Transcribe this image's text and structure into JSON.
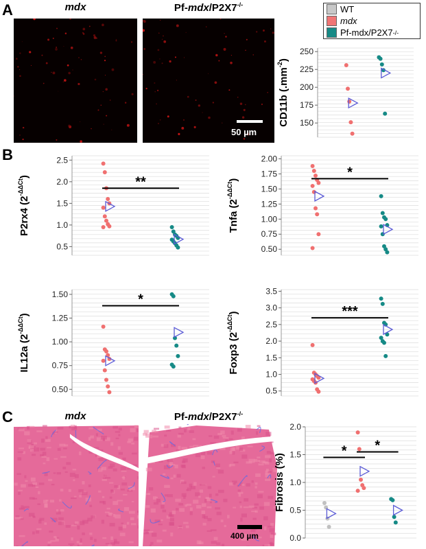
{
  "panels": {
    "A": "A",
    "B": "B",
    "C": "C"
  },
  "panelA": {
    "title_left_italic": "mdx",
    "title_right_prefix": "Pf-",
    "title_right_italic": "mdx",
    "title_right_suffix": "/P2X7",
    "title_right_sup": "-/-",
    "scalebar_label": "50 µm"
  },
  "panelC": {
    "title_left_italic": "mdx",
    "title_right_prefix": "Pf-",
    "title_right_italic": "mdx",
    "title_right_suffix": "/P2X7",
    "title_right_sup": "-/-",
    "scalebar_label": "400 µm"
  },
  "legend": {
    "items": [
      {
        "label": "WT",
        "italic": false,
        "sup": "",
        "color": "#c8c8c8"
      },
      {
        "label": "mdx",
        "italic": true,
        "sup": "",
        "color": "#f07575"
      },
      {
        "label": "Pf-mdx/P2X7",
        "italic": false,
        "sup": "-/-",
        "color": "#178a86"
      }
    ]
  },
  "colors": {
    "wt": "#c0c0c0",
    "mdx": "#f07070",
    "pf": "#168a86",
    "mean_marker": "#5a5ad6"
  },
  "chart_data": [
    {
      "id": "cd11b",
      "type": "scatter",
      "ylabel": "CD11b (.mm",
      "ylabel_sup": "-2",
      "ylabel_tail": ")",
      "ylim": [
        130,
        255
      ],
      "yticks": [
        150,
        175,
        200,
        225,
        250
      ],
      "ytick_labels": [
        "150",
        "175",
        "200",
        "225",
        "250"
      ],
      "groups": [
        {
          "group": "mdx",
          "values": [
            231,
            198,
            180,
            151,
            135
          ],
          "mean": 178
        },
        {
          "group": "pf",
          "values": [
            242,
            240,
            232,
            224,
            163
          ],
          "mean": 220
        }
      ],
      "significance": []
    },
    {
      "id": "p2rx4",
      "type": "scatter",
      "ylabel": "P2rx4 (2",
      "ylabel_sup": "-ΔΔCt",
      "ylabel_tail": ")",
      "ylim": [
        0.3,
        2.6
      ],
      "yticks": [
        0.5,
        1.0,
        1.5,
        2.0,
        2.5
      ],
      "ytick_labels": [
        "0.5",
        "1.0",
        "1.5",
        "2.0",
        "2.5"
      ],
      "groups": [
        {
          "group": "mdx",
          "values": [
            2.42,
            2.22,
            1.85,
            1.6,
            1.5,
            1.4,
            1.2,
            1.1,
            1.02,
            0.97,
            0.95
          ],
          "mean": 1.43
        },
        {
          "group": "pf",
          "values": [
            0.95,
            0.85,
            0.78,
            0.75,
            0.7,
            0.66,
            0.62,
            0.58,
            0.53,
            0.48
          ],
          "mean": 0.67
        }
      ],
      "significance": [
        {
          "label": "**",
          "y": 1.85
        }
      ]
    },
    {
      "id": "tnfa",
      "type": "scatter",
      "ylabel": "Tnfa (2",
      "ylabel_sup": "-ΔΔCt",
      "ylabel_tail": ")",
      "ylim": [
        0.4,
        2.05
      ],
      "yticks": [
        0.5,
        0.75,
        1.0,
        1.25,
        1.5,
        1.75,
        2.0
      ],
      "ytick_labels": [
        "0.50",
        "0.75",
        "1.00",
        "1.25",
        "1.50",
        "1.75",
        "2.00"
      ],
      "groups": [
        {
          "group": "mdx",
          "values": [
            1.88,
            1.8,
            1.72,
            1.65,
            1.6,
            1.55,
            1.45,
            1.18,
            1.08,
            0.75,
            0.52
          ],
          "mean": 1.38
        },
        {
          "group": "pf",
          "values": [
            1.38,
            1.1,
            1.03,
            1.0,
            0.9,
            0.88,
            0.75,
            0.55,
            0.5,
            0.45
          ],
          "mean": 0.83
        }
      ],
      "significance": [
        {
          "label": "*",
          "y": 1.67
        }
      ]
    },
    {
      "id": "il12a",
      "type": "scatter",
      "ylabel": "IL12a (2",
      "ylabel_sup": "-ΔΔCt",
      "ylabel_tail": ")",
      "ylim": [
        0.43,
        1.55
      ],
      "yticks": [
        0.5,
        0.75,
        1.0,
        1.25,
        1.5
      ],
      "ytick_labels": [
        "0.50",
        "0.75",
        "1.00",
        "1.25",
        "1.50"
      ],
      "groups": [
        {
          "group": "mdx",
          "values": [
            1.16,
            0.92,
            0.9,
            0.86,
            0.82,
            0.8,
            0.7,
            0.6,
            0.53,
            0.47
          ],
          "mean": 0.8
        },
        {
          "group": "pf",
          "values": [
            1.5,
            1.48,
            1.04,
            0.96,
            0.85,
            0.76,
            0.74
          ],
          "mean": 1.1
        }
      ],
      "significance": [
        {
          "label": "*",
          "y": 1.38
        }
      ]
    },
    {
      "id": "foxp3",
      "type": "scatter",
      "ylabel": "Foxp3 (2",
      "ylabel_sup": "-ΔΔCt",
      "ylabel_tail": ")",
      "ylim": [
        0.35,
        3.55
      ],
      "yticks": [
        0.5,
        1.0,
        1.5,
        2.0,
        2.5,
        3.0,
        3.5
      ],
      "ytick_labels": [
        "0.5",
        "1.0",
        "1.5",
        "2.0",
        "2.5",
        "3.0",
        "3.5"
      ],
      "groups": [
        {
          "group": "mdx",
          "values": [
            1.88,
            1.05,
            1.0,
            0.95,
            0.9,
            0.85,
            0.8,
            0.75,
            0.55,
            0.48
          ],
          "mean": 0.88
        },
        {
          "group": "pf",
          "values": [
            3.28,
            3.12,
            2.55,
            2.5,
            2.2,
            2.1,
            2.0,
            1.95,
            1.55
          ],
          "mean": 2.35
        }
      ],
      "significance": [
        {
          "label": "***",
          "y": 2.7
        }
      ]
    },
    {
      "id": "fibrosis",
      "type": "scatter",
      "ylabel": "Fibrosis (%)",
      "ylabel_sup": "",
      "ylabel_tail": "",
      "ylim": [
        0,
        2.0
      ],
      "yticks": [
        0.0,
        0.5,
        1.0,
        1.5,
        2.0
      ],
      "ytick_labels": [
        "0.0",
        "0.5",
        "1.0",
        "1.5",
        "2.0"
      ],
      "groups": [
        {
          "group": "wt",
          "values": [
            0.63,
            0.55,
            0.35,
            0.2
          ],
          "mean": 0.44
        },
        {
          "group": "mdx",
          "values": [
            1.9,
            1.6,
            1.05,
            0.95,
            0.9,
            0.85
          ],
          "mean": 1.2
        },
        {
          "group": "pf",
          "values": [
            0.7,
            0.68,
            0.38,
            0.28
          ],
          "mean": 0.5
        }
      ],
      "significance": [
        {
          "label": "*",
          "y": 1.45,
          "from": 0,
          "to": 1
        },
        {
          "label": "*",
          "y": 1.55,
          "from": 1,
          "to": 2
        }
      ]
    }
  ]
}
